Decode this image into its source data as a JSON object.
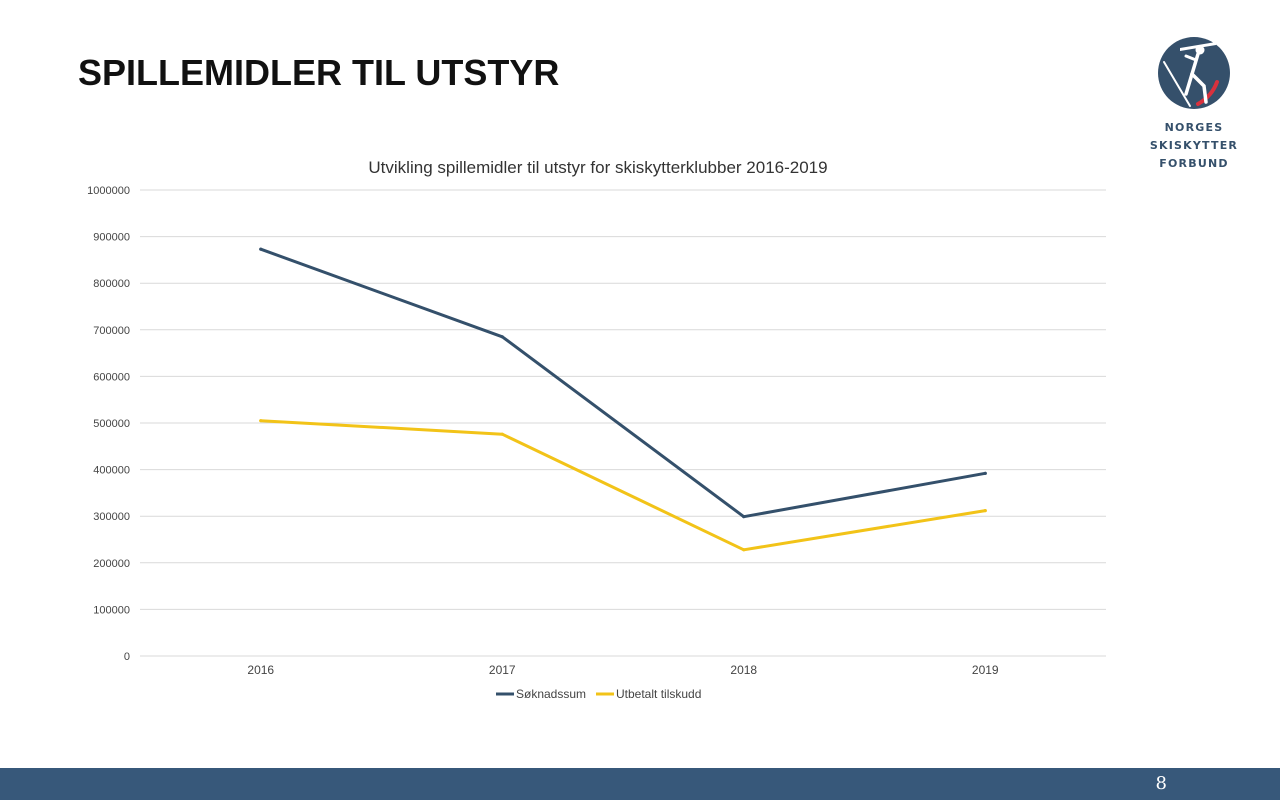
{
  "slide": {
    "title": "SPILLEMIDLER TIL UTSTYR",
    "page_number": "8"
  },
  "logo": {
    "icon": "biathlon-skier-logo-icon",
    "line1": "NORGES",
    "line2": "SKISKYTTER",
    "line3": "FORBUND",
    "colors": {
      "circle": "#35506b",
      "accent": "#d9313d"
    }
  },
  "colors": {
    "footer": "#37587a",
    "grid": "#d9d9d9"
  },
  "chart_data": {
    "type": "line",
    "title": "Utvikling spillemidler til utstyr for skiskytterklubber 2016-2019",
    "categories": [
      "2016",
      "2017",
      "2018",
      "2019"
    ],
    "series": [
      {
        "name": "Søknadssum",
        "values": [
          873000,
          685000,
          299000,
          392000
        ],
        "color": "#34506b"
      },
      {
        "name": "Utbetalt tilskudd",
        "values": [
          505000,
          476000,
          228000,
          312000
        ],
        "color": "#f2c318"
      }
    ],
    "ylim": [
      0,
      1000000
    ],
    "yticks": [
      0,
      100000,
      200000,
      300000,
      400000,
      500000,
      600000,
      700000,
      800000,
      900000,
      1000000
    ],
    "grid": true,
    "legend_position": "bottom"
  }
}
